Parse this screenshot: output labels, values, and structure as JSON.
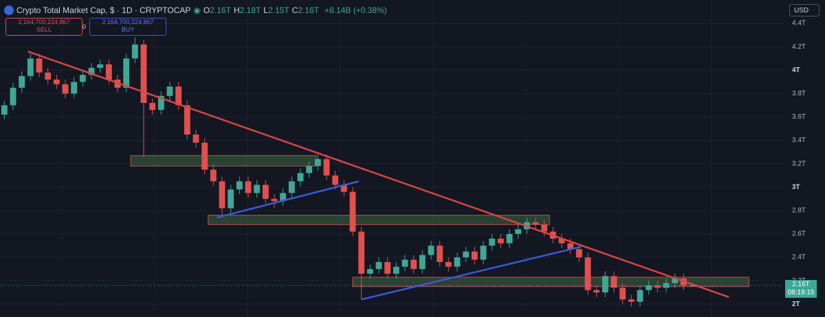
{
  "header": {
    "title": "Crypto Total Market Cap, $ · 1D · CRYPTOCAP",
    "ohlc": [
      {
        "key": "O",
        "value": "2.16T"
      },
      {
        "key": "H",
        "value": "2.18T"
      },
      {
        "key": "L",
        "value": "2.15T"
      },
      {
        "key": "C",
        "value": "2.16T"
      }
    ],
    "change": "+8.14B (+0.38%)",
    "sell": {
      "price": "2,164,700,224,867",
      "label": "SELL"
    },
    "spread": "0",
    "buy": {
      "price": "2,164,700,224,867",
      "label": "BUY"
    },
    "currency": "USD"
  },
  "chart_data": {
    "type": "candlestick",
    "up_color": "#3fa796",
    "down_color": "#e0504f",
    "xlim": [
      -0.5,
      89.5
    ],
    "ylim": [
      1.89,
      4.6
    ],
    "yticks": [
      {
        "value": 2,
        "label": "2T"
      },
      {
        "value": 2.2,
        "label": "2.2T"
      },
      {
        "value": 2.4,
        "label": "2.4T"
      },
      {
        "value": 2.6,
        "label": "2.6T"
      },
      {
        "value": 2.8,
        "label": "2.8T"
      },
      {
        "value": 3,
        "label": "3T"
      },
      {
        "value": 3.2,
        "label": "3.2T"
      },
      {
        "value": 3.4,
        "label": "3.4T"
      },
      {
        "value": 3.6,
        "label": "3.6T"
      },
      {
        "value": 3.8,
        "label": "3.8T"
      },
      {
        "value": 4,
        "label": "4T"
      },
      {
        "value": 4.2,
        "label": "4.2T"
      },
      {
        "value": 4.4,
        "label": "4.4T"
      }
    ],
    "grid": true,
    "open": [
      3.62,
      3.7,
      3.85,
      3.95,
      4.1,
      3.98,
      3.92,
      3.88,
      3.8,
      3.9,
      3.96,
      4.02,
      4.05,
      3.92,
      3.85,
      4.1,
      4.22,
      3.72,
      3.66,
      3.78,
      3.86,
      3.7,
      3.45,
      3.38,
      3.15,
      3.05,
      2.82,
      2.98,
      3.05,
      2.95,
      3.02,
      2.9,
      2.88,
      2.95,
      3.05,
      3.12,
      3.18,
      3.24,
      3.1,
      3.02,
      2.96,
      2.62,
      2.26,
      2.3,
      2.36,
      2.26,
      2.32,
      2.38,
      2.3,
      2.42,
      2.5,
      2.36,
      2.32,
      2.4,
      2.45,
      2.38,
      2.5,
      2.56,
      2.52,
      2.6,
      2.64,
      2.7,
      2.68,
      2.62,
      2.56,
      2.52,
      2.47,
      2.4,
      2.12,
      2.1,
      2.24,
      2.14,
      2.04,
      2.02,
      2.12,
      2.16,
      2.14,
      2.18,
      2.22,
      2.16
    ],
    "high": [
      3.74,
      3.89,
      3.99,
      4.14,
      4.14,
      4.02,
      3.96,
      3.92,
      3.94,
      4.0,
      4.06,
      4.09,
      4.09,
      3.96,
      4.14,
      4.28,
      4.26,
      3.76,
      3.82,
      3.9,
      3.9,
      3.74,
      3.49,
      3.42,
      3.19,
      3.09,
      3.02,
      3.09,
      3.09,
      3.06,
      3.06,
      2.94,
      2.99,
      3.09,
      3.16,
      3.22,
      3.28,
      3.28,
      3.14,
      3.06,
      3.0,
      2.66,
      2.34,
      2.4,
      2.4,
      2.36,
      2.42,
      2.42,
      2.46,
      2.54,
      2.54,
      2.4,
      2.44,
      2.49,
      2.49,
      2.54,
      2.6,
      2.6,
      2.64,
      2.68,
      2.74,
      2.74,
      2.72,
      2.66,
      2.6,
      2.56,
      2.51,
      2.44,
      2.16,
      2.28,
      2.28,
      2.18,
      2.08,
      2.16,
      2.2,
      2.2,
      2.22,
      2.26,
      2.26,
      2.18
    ],
    "low": [
      3.58,
      3.66,
      3.81,
      3.91,
      3.94,
      3.88,
      3.84,
      3.76,
      3.76,
      3.86,
      3.92,
      3.98,
      3.88,
      3.81,
      3.81,
      4.06,
      3.26,
      3.62,
      3.62,
      3.74,
      3.66,
      3.41,
      3.34,
      3.11,
      3.01,
      2.74,
      2.78,
      2.94,
      2.91,
      2.91,
      2.86,
      2.82,
      2.84,
      2.91,
      3.01,
      3.08,
      3.14,
      3.06,
      2.98,
      2.92,
      2.58,
      2.04,
      2.22,
      2.26,
      2.22,
      2.22,
      2.28,
      2.26,
      2.26,
      2.38,
      2.32,
      2.28,
      2.28,
      2.36,
      2.34,
      2.34,
      2.46,
      2.48,
      2.48,
      2.56,
      2.6,
      2.64,
      2.58,
      2.52,
      2.48,
      2.43,
      2.36,
      2.08,
      2.06,
      2.06,
      2.1,
      2.0,
      1.98,
      1.98,
      2.08,
      2.1,
      2.1,
      2.14,
      2.12,
      2.15
    ],
    "close": [
      3.7,
      3.85,
      3.95,
      4.1,
      3.98,
      3.92,
      3.88,
      3.8,
      3.9,
      3.96,
      4.02,
      4.05,
      3.92,
      3.85,
      4.1,
      4.22,
      3.72,
      3.66,
      3.78,
      3.86,
      3.7,
      3.45,
      3.38,
      3.15,
      3.05,
      2.82,
      2.98,
      3.05,
      2.95,
      3.02,
      2.9,
      2.88,
      2.95,
      3.05,
      3.12,
      3.18,
      3.24,
      3.1,
      3.02,
      2.96,
      2.62,
      2.26,
      2.3,
      2.36,
      2.26,
      2.32,
      2.38,
      2.3,
      2.42,
      2.5,
      2.36,
      2.32,
      2.4,
      2.45,
      2.38,
      2.5,
      2.56,
      2.52,
      2.6,
      2.64,
      2.7,
      2.68,
      2.62,
      2.56,
      2.52,
      2.47,
      2.4,
      2.12,
      2.1,
      2.24,
      2.14,
      2.04,
      2.02,
      2.12,
      2.16,
      2.14,
      2.18,
      2.22,
      2.16,
      2.16
    ],
    "price_tag": {
      "label": "2.16T",
      "countdown": "08:19:15"
    },
    "drawings": {
      "trendlines": [
        {
          "color": "#d84545",
          "x": [
            2.7,
            83.2
          ],
          "y": [
            4.16,
            2.06
          ]
        },
        {
          "color": "#3a5bd9",
          "x": [
            24.4,
            40.7
          ],
          "y": [
            2.74,
            3.05
          ]
        },
        {
          "color": "#3a5bd9",
          "x": [
            41,
            66.2
          ],
          "y": [
            2.04,
            2.49
          ]
        }
      ],
      "zones": [
        {
          "x": [
            14.5,
            35.8
          ],
          "y": [
            3.18,
            3.27
          ]
        },
        {
          "x": [
            23.4,
            62.6
          ],
          "y": [
            2.68,
            2.76
          ]
        },
        {
          "x": [
            40,
            85.5
          ],
          "y": [
            2.15,
            2.23
          ]
        }
      ],
      "zone_fill": "rgba(70,120,70,0.45)",
      "zone_stroke": "#c0504d"
    }
  }
}
